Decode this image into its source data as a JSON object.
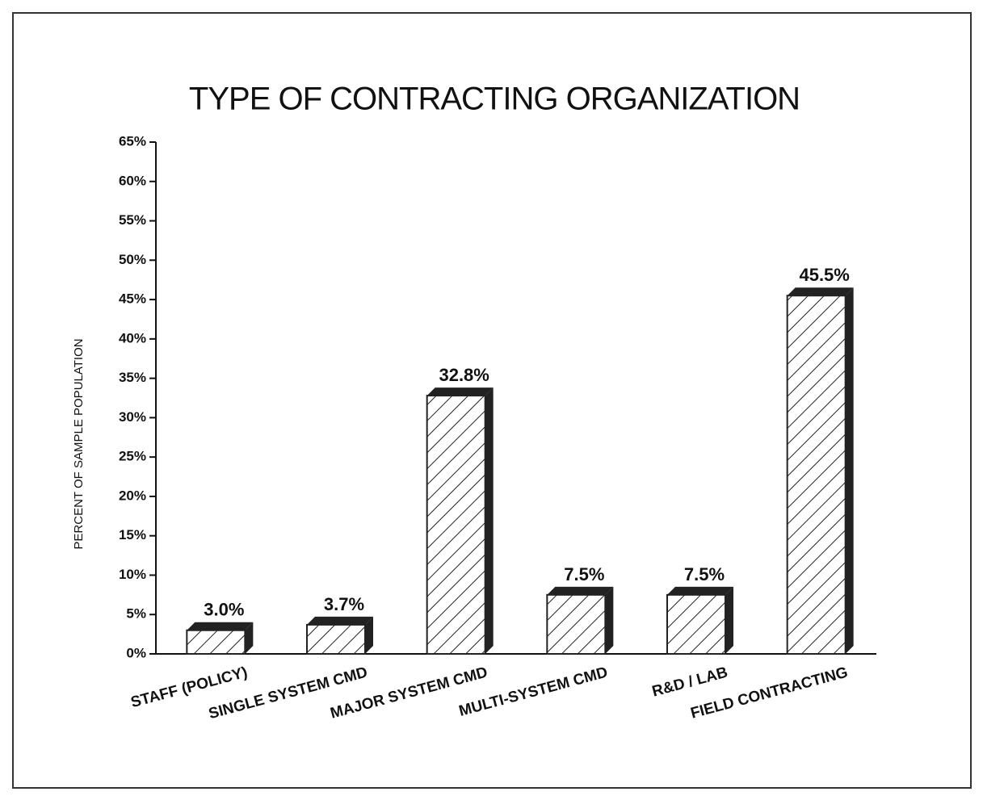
{
  "chart_data": {
    "type": "bar",
    "title": "TYPE OF CONTRACTING ORGANIZATION",
    "y_label": "PERCENT OF SAMPLE POPULATION",
    "categories": [
      "STAFF (POLICY)",
      "SINGLE SYSTEM CMD",
      "MAJOR SYSTEM CMD",
      "MULTI-SYSTEM CMD",
      "R&D / LAB",
      "FIELD CONTRACTING"
    ],
    "values": [
      3.0,
      3.7,
      32.8,
      7.5,
      7.5,
      45.5
    ],
    "value_labels": [
      "3.0%",
      "3.7%",
      "32.8%",
      "7.5%",
      "7.5%",
      "45.5%"
    ],
    "color": "#222222",
    "ylim": [
      0,
      65
    ],
    "yticks": [
      {
        "value": 0,
        "label": "0%"
      },
      {
        "value": 5,
        "label": "5%"
      },
      {
        "value": 10,
        "label": "10%"
      },
      {
        "value": 15,
        "label": "15%"
      },
      {
        "value": 20,
        "label": "20%"
      },
      {
        "value": 25,
        "label": "25%"
      },
      {
        "value": 30,
        "label": "30%"
      },
      {
        "value": 35,
        "label": "35%"
      },
      {
        "value": 40,
        "label": "40%"
      },
      {
        "value": 45,
        "label": "45%"
      },
      {
        "value": 50,
        "label": "50%"
      },
      {
        "value": 55,
        "label": "55%"
      },
      {
        "value": 60,
        "label": "60%"
      },
      {
        "value": 65,
        "label": "65%"
      }
    ],
    "grid": false
  }
}
